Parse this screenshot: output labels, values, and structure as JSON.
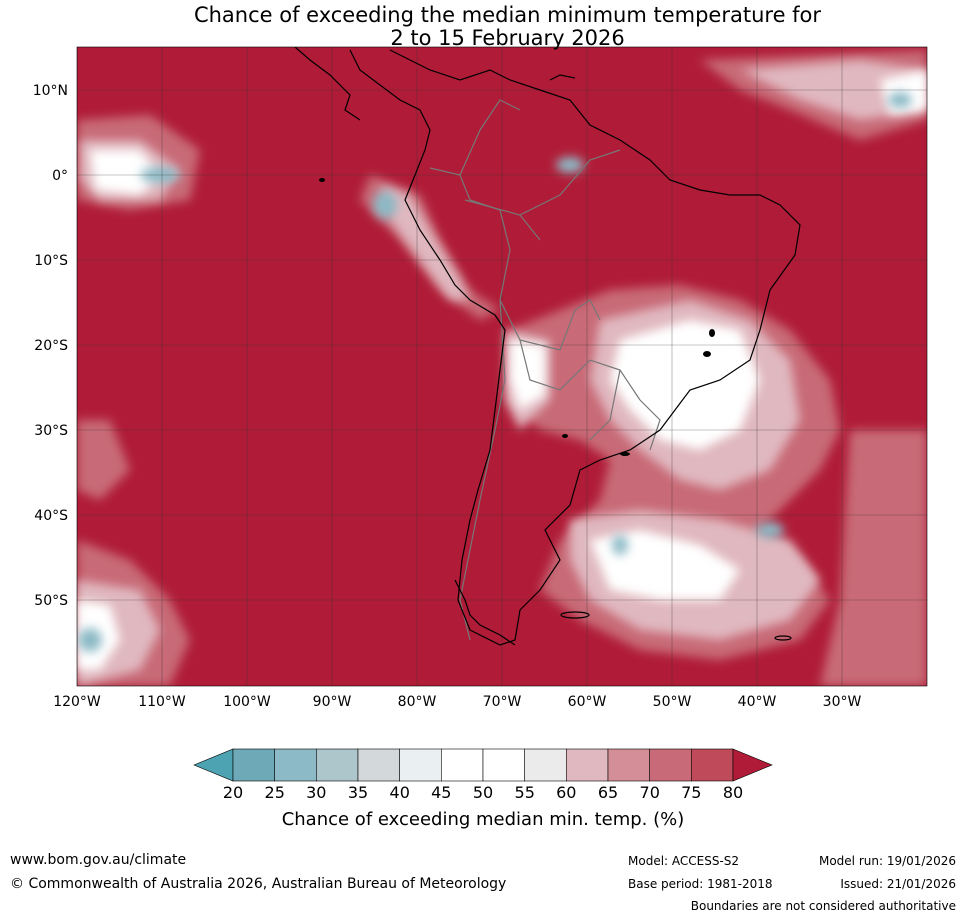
{
  "header": {
    "title_line1": "Chance of exceeding the median minimum temperature for",
    "title_line2": "2 to 15 February 2026"
  },
  "map": {
    "lat_labels": [
      "10°N",
      "0°",
      "10°S",
      "20°S",
      "30°S",
      "40°S",
      "50°S"
    ],
    "lon_labels": [
      "120°W",
      "110°W",
      "100°W",
      "90°W",
      "80°W",
      "70°W",
      "60°W",
      "50°W",
      "40°W",
      "30°W"
    ],
    "background_color": "#b01c37",
    "coast_color": "#000000",
    "border_color": "#777777"
  },
  "colorbar": {
    "ticks": [
      "20",
      "25",
      "30",
      "35",
      "40",
      "45",
      "50",
      "55",
      "60",
      "65",
      "70",
      "75",
      "80"
    ],
    "colors": [
      "#4da3b2",
      "#6ea9b8",
      "#8cbac6",
      "#adc6cc",
      "#d3d9da",
      "#eaf0f2",
      "#ffffff",
      "#ffffff",
      "#ebebec",
      "#e0b8bf",
      "#d48e98",
      "#c86a77",
      "#bf4a5a",
      "#b01c37"
    ],
    "label": "Chance of exceeding median min. temp. (%)"
  },
  "footer": {
    "url": "www.bom.gov.au/climate",
    "copyright": "© Commonwealth of Australia 2026, Australian Bureau of Meteorology",
    "model": "Model: ACCESS-S2",
    "base_period": "Base period: 1981-2018",
    "model_run": "Model run: 19/01/2026",
    "issued": "Issued: 21/01/2026",
    "boundaries_note": "Boundaries are not considered authoritative"
  }
}
